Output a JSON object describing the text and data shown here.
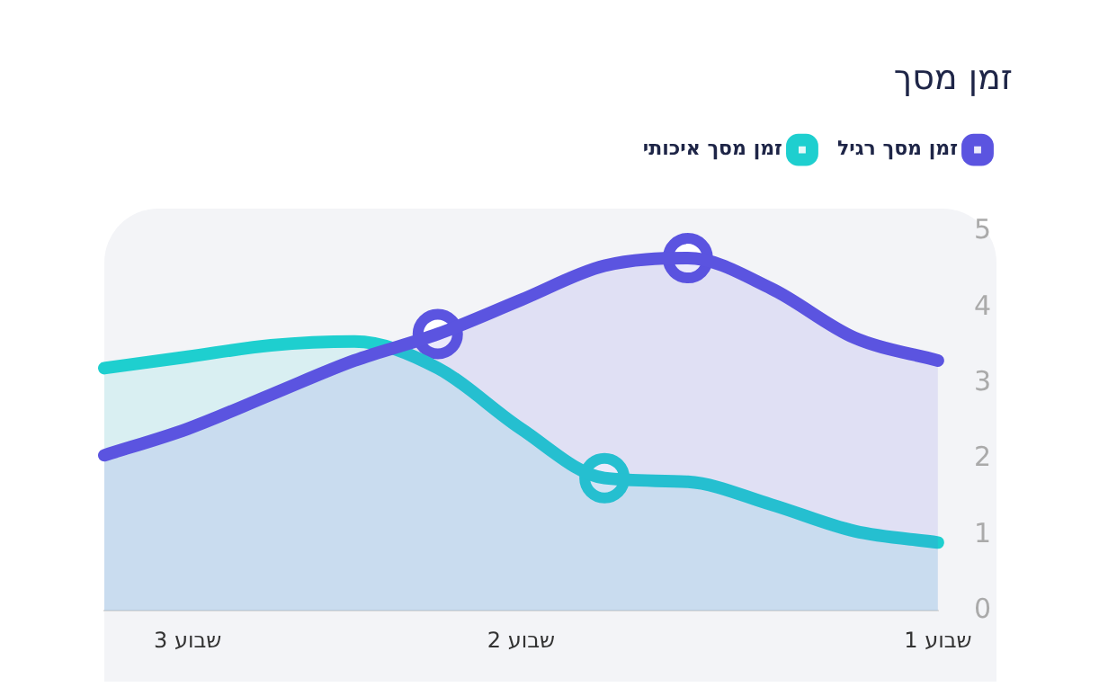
{
  "chart_data": {
    "type": "area",
    "title": "זמן מסך",
    "legend": "top right",
    "categories": [
      null,
      "שבוע 3",
      null,
      null,
      null,
      "שבוע 2",
      null,
      null,
      null,
      null,
      "שבוע 1"
    ],
    "ylim": [
      0,
      5
    ],
    "yticks": [
      0,
      1,
      2,
      3,
      4,
      5
    ],
    "series": [
      {
        "name": "זמן מסך רגיל",
        "color": "#5b54e0",
        "values": [
          2.05,
          2.4,
          2.85,
          3.3,
          3.65,
          4.1,
          4.55,
          4.65,
          4.25,
          3.6,
          3.3
        ]
      },
      {
        "name": "זמן מסך איכותי",
        "color": "#1ecfcf",
        "values": [
          3.2,
          3.35,
          3.5,
          3.55,
          3.2,
          2.4,
          1.75,
          1.7,
          1.4,
          1.05,
          0.9
        ]
      },
      {
        "type": "scatter",
        "marker": "circle",
        "color": "#5b54e0",
        "values": [
          null,
          null,
          null,
          null,
          3.65,
          null,
          null,
          4.65,
          null,
          null,
          null
        ]
      },
      {
        "type": "scatter",
        "marker": "circle",
        "color": "#1ecfcf",
        "values": [
          null,
          null,
          null,
          null,
          null,
          null,
          1.75,
          null,
          null,
          null,
          null
        ]
      }
    ]
  }
}
